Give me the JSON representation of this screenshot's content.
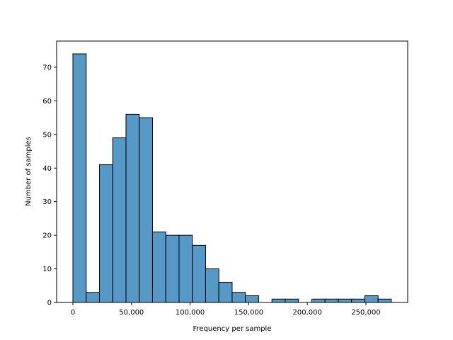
{
  "chart_data": {
    "type": "histogram",
    "title": "",
    "xlabel": "Frequency per sample",
    "ylabel": "Number of samples",
    "bin_start": 0,
    "bin_width": 11320,
    "values": [
      74,
      3,
      41,
      49,
      56,
      55,
      21,
      20,
      20,
      17,
      10,
      6,
      3,
      2,
      0,
      1,
      1,
      0,
      1,
      1,
      1,
      1,
      2,
      1
    ],
    "xlim": [
      -13890,
      285630
    ],
    "ylim": [
      0,
      77.8
    ],
    "xticks": [
      0,
      50000,
      100000,
      150000,
      200000,
      250000
    ],
    "xtick_labels": [
      "0",
      "50,000",
      "100,000",
      "150,000",
      "200,000",
      "250,000"
    ],
    "yticks": [
      0,
      10,
      20,
      30,
      40,
      50,
      60,
      70
    ],
    "ytick_labels": [
      "0",
      "10",
      "20",
      "30",
      "40",
      "50",
      "60",
      "70"
    ],
    "bar_color": "#5799c6",
    "edge_color": "#000000",
    "grid": false,
    "legend": "none"
  }
}
